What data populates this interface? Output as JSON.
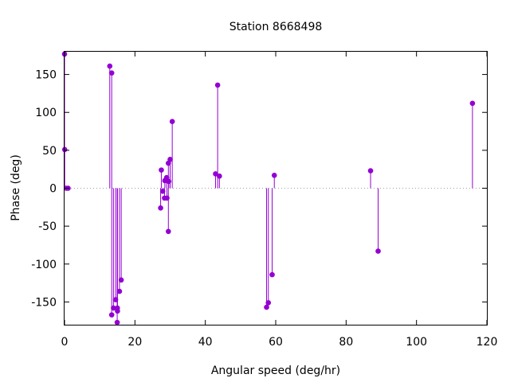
{
  "chart_data": {
    "type": "scatter",
    "style": "impulses-with-points",
    "title": "Station 8668498",
    "xlabel": "Angular speed (deg/hr)",
    "ylabel": "Phase (deg)",
    "xlim": [
      0,
      120
    ],
    "ylim": [
      -180,
      180
    ],
    "xticks": [
      0,
      20,
      40,
      60,
      80,
      100,
      120
    ],
    "yticks": [
      -150,
      -100,
      -50,
      0,
      50,
      100,
      150
    ],
    "grid": false,
    "zero_line": true,
    "series_color": "#9400d3",
    "points": [
      {
        "x": 0.0,
        "y": 177
      },
      {
        "x": 0.04,
        "y": 51
      },
      {
        "x": 0.5,
        "y": 0
      },
      {
        "x": 1.0,
        "y": 0
      },
      {
        "x": 12.85,
        "y": 161
      },
      {
        "x": 13.4,
        "y": 152
      },
      {
        "x": 13.4,
        "y": -167
      },
      {
        "x": 13.9,
        "y": -158
      },
      {
        "x": 14.5,
        "y": -147
      },
      {
        "x": 14.96,
        "y": -177
      },
      {
        "x": 15.0,
        "y": -158
      },
      {
        "x": 15.04,
        "y": -162
      },
      {
        "x": 15.6,
        "y": -136
      },
      {
        "x": 16.1,
        "y": -121
      },
      {
        "x": 27.3,
        "y": -26
      },
      {
        "x": 27.5,
        "y": 24
      },
      {
        "x": 27.9,
        "y": -4
      },
      {
        "x": 28.4,
        "y": -13
      },
      {
        "x": 28.5,
        "y": 10
      },
      {
        "x": 29.0,
        "y": 14
      },
      {
        "x": 29.1,
        "y": -13
      },
      {
        "x": 29.5,
        "y": -57
      },
      {
        "x": 29.5,
        "y": 33
      },
      {
        "x": 29.6,
        "y": 9
      },
      {
        "x": 30.0,
        "y": 38
      },
      {
        "x": 30.6,
        "y": 88
      },
      {
        "x": 42.9,
        "y": 19
      },
      {
        "x": 43.5,
        "y": 136
      },
      {
        "x": 44.0,
        "y": 16
      },
      {
        "x": 57.4,
        "y": -157
      },
      {
        "x": 57.9,
        "y": -151
      },
      {
        "x": 58.98,
        "y": -114
      },
      {
        "x": 59.6,
        "y": 17
      },
      {
        "x": 86.95,
        "y": 23
      },
      {
        "x": 89.1,
        "y": -83
      },
      {
        "x": 115.9,
        "y": 112
      }
    ]
  }
}
